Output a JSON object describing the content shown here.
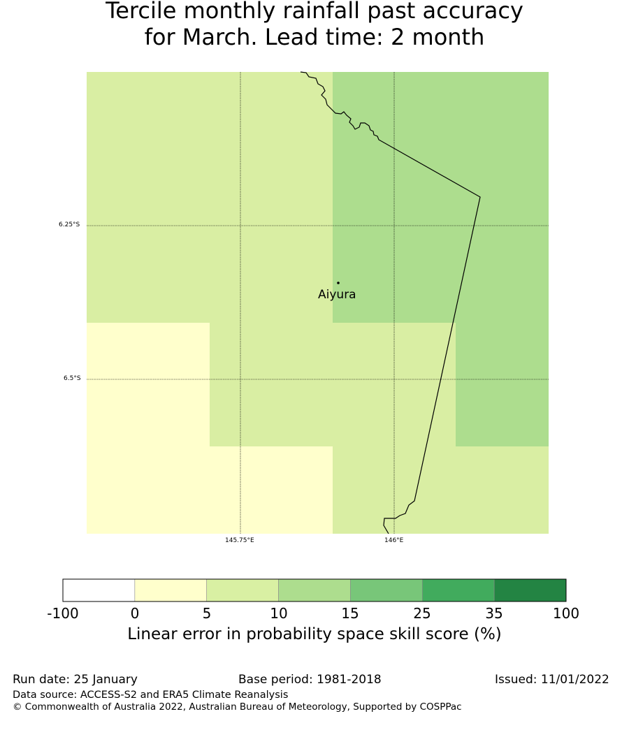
{
  "title": {
    "line1": "Tercile monthly rainfall past accuracy",
    "line2": "for March. Lead time: 2 month"
  },
  "map": {
    "lat_labels": [
      "6.25°S",
      "6.5°S"
    ],
    "lon_labels": [
      "145.75°E",
      "146°E"
    ],
    "place": {
      "name": "Aiyura"
    },
    "colors": {
      "light_green": "#d9eea3",
      "mid_green": "#addd8e",
      "pale_yellow": "#ffffcc"
    }
  },
  "colorbar": {
    "ticks": [
      "-100",
      "0",
      "5",
      "10",
      "15",
      "25",
      "35",
      "100"
    ],
    "colors": [
      "#ffffff",
      "#ffffcc",
      "#d9f0a3",
      "#addd8e",
      "#78c679",
      "#41ab5d",
      "#238443"
    ],
    "label": "Linear error in probability space skill score (%)"
  },
  "footer": {
    "run_date": "Run date: 25 January",
    "base_period": "Base period: 1981-2018",
    "issued": "Issued: 11/01/2022",
    "data_source": "Data source: ACCESS-S2 and ERA5 Climate Reanalysis",
    "copyright": "© Commonwealth of Australia 2022, Australian Bureau of Meteorology, Supported by COSPPac"
  }
}
